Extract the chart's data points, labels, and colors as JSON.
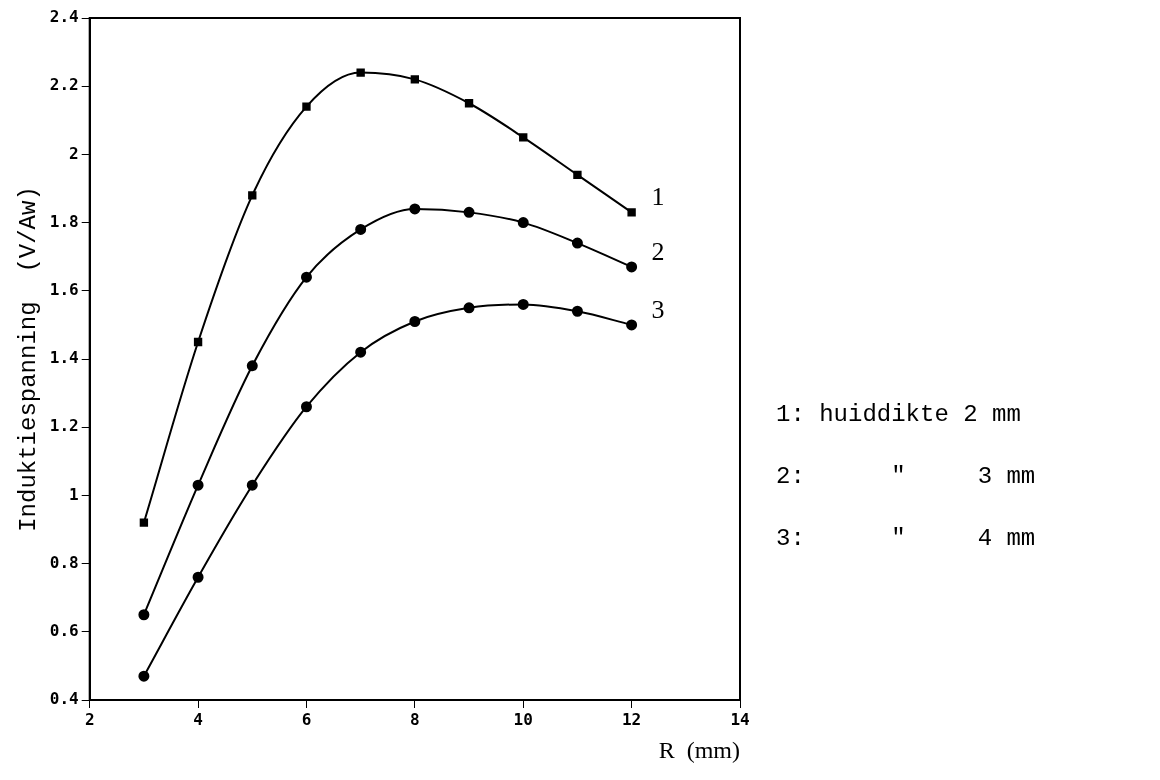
{
  "chart_data": {
    "type": "line",
    "xlabel": "R  (mm)",
    "ylabel": "Induktiespanning  (V/Aw)",
    "x": [
      3,
      4,
      5,
      6,
      7,
      8,
      9,
      10,
      11,
      12
    ],
    "series": [
      {
        "name": "1",
        "color": "#000000",
        "marker": "square",
        "values": [
          0.92,
          1.45,
          1.88,
          2.14,
          2.24,
          2.22,
          2.15,
          2.05,
          1.94,
          1.83
        ]
      },
      {
        "name": "2",
        "color": "#000000",
        "marker": "circle",
        "values": [
          0.65,
          1.03,
          1.38,
          1.64,
          1.78,
          1.84,
          1.83,
          1.8,
          1.74,
          1.67
        ]
      },
      {
        "name": "3",
        "color": "#000000",
        "marker": "circle",
        "values": [
          0.47,
          0.76,
          1.03,
          1.26,
          1.42,
          1.51,
          1.55,
          1.56,
          1.54,
          1.5
        ]
      }
    ],
    "xlim": [
      2,
      14
    ],
    "xticks": [
      2,
      4,
      6,
      8,
      10,
      12,
      14
    ],
    "ylim": [
      0.4,
      2.4
    ],
    "yticks": [
      0.4,
      0.6,
      0.8,
      1,
      1.2,
      1.4,
      1.6,
      1.8,
      2,
      2.2,
      2.4
    ],
    "annotations": [
      "1: huiddikte 2 mm",
      "2:      \"     3 mm",
      "3:      \"     4 mm"
    ],
    "grid": false,
    "legend": false
  }
}
